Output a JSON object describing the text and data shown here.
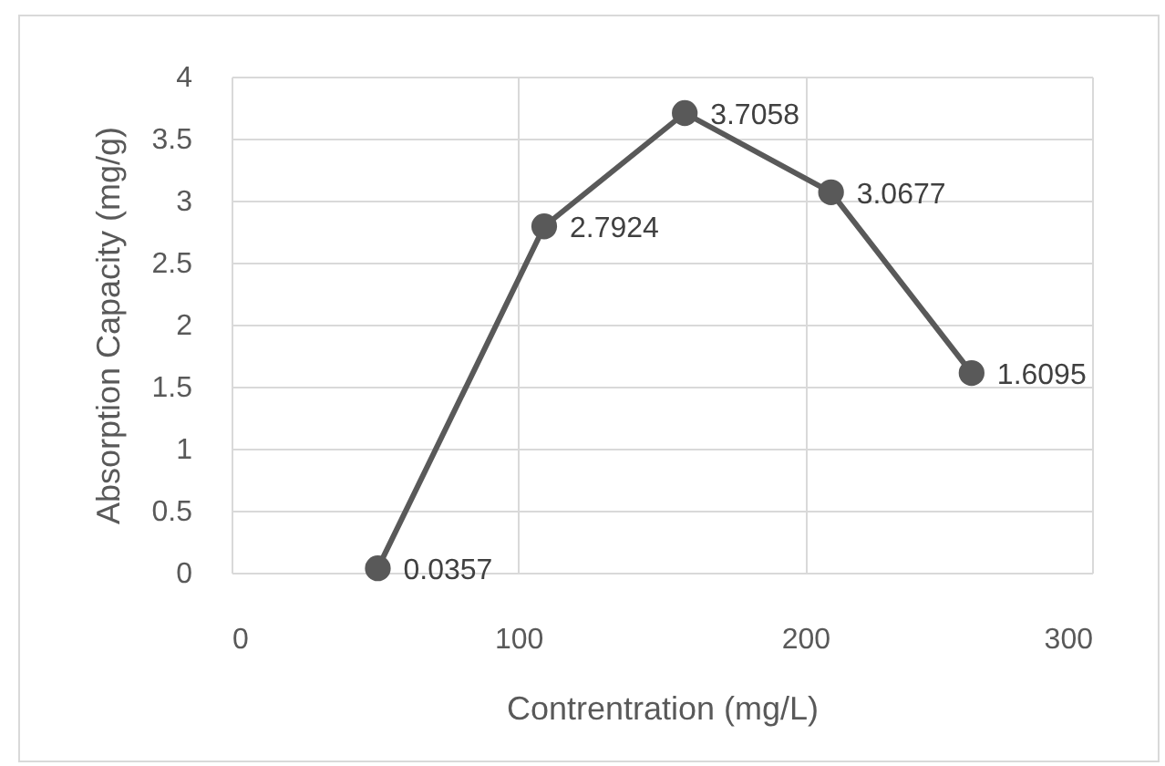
{
  "chart_data": {
    "type": "line",
    "xlabel": "Contrentration (mg/L)",
    "ylabel": "Absorption Capacity (mg/g)",
    "x": [
      51,
      109,
      158,
      209,
      258
    ],
    "series": [
      {
        "color": "#595959",
        "values": [
          0.0357,
          2.7924,
          3.7058,
          3.0677,
          1.6095
        ]
      }
    ],
    "xlim": [
      0,
      300
    ],
    "xticks": [
      0,
      100,
      200,
      300
    ],
    "ylim": [
      0,
      4
    ],
    "yticks": [
      0,
      0.5,
      1,
      1.5,
      2,
      2.5,
      3,
      3.5,
      4
    ],
    "grid": true,
    "marker": "circle",
    "line_style": "solid",
    "data_labels": true
  }
}
